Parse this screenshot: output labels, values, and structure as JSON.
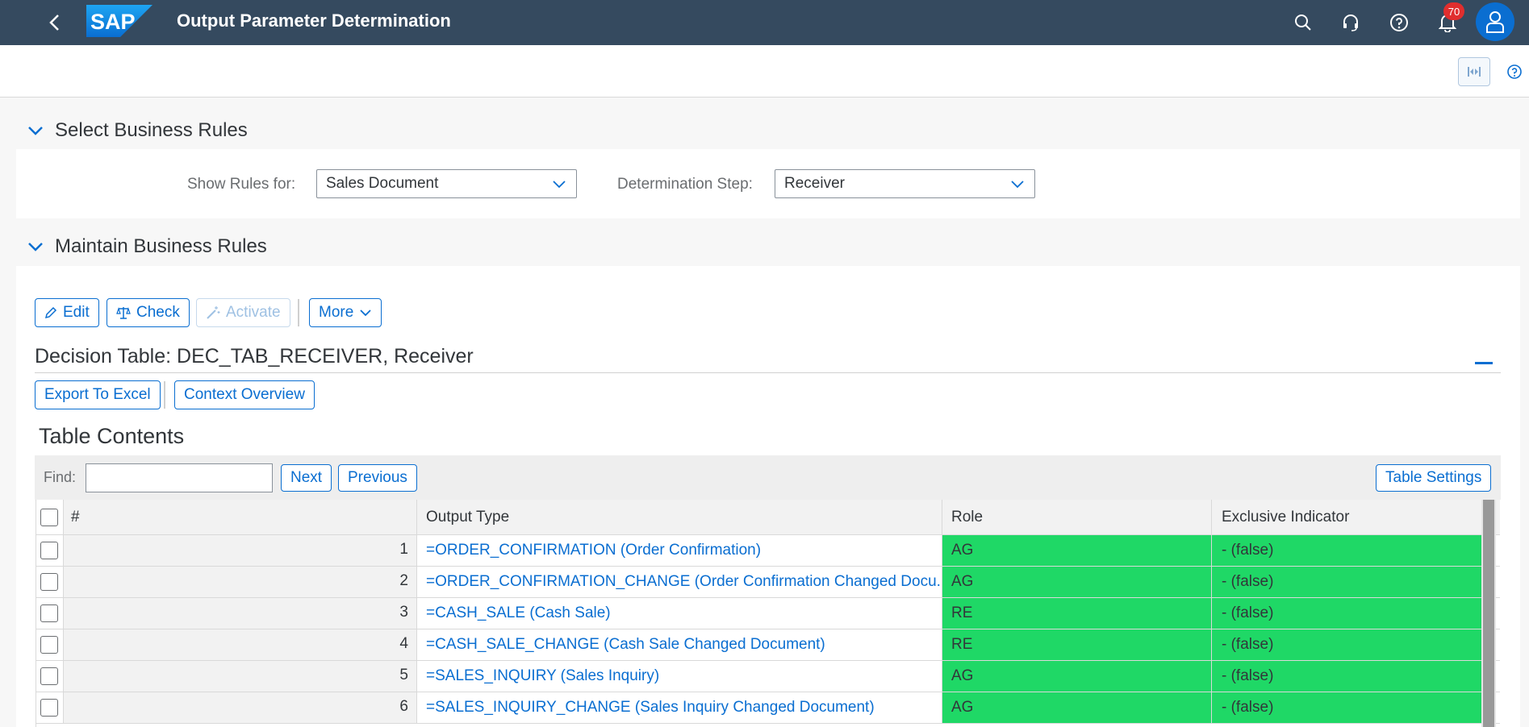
{
  "shell": {
    "title": "Output Parameter Determination",
    "logo_text": "SAP",
    "notification_count": "70"
  },
  "panel_select": {
    "title": "Select Business Rules",
    "show_rules_label": "Show Rules for:",
    "show_rules_value": "Sales Document",
    "determination_step_label": "Determination Step:",
    "determination_step_value": "Receiver"
  },
  "panel_maintain": {
    "title": "Maintain Business Rules",
    "toolbar": {
      "edit": "Edit",
      "check": "Check",
      "activate": "Activate",
      "more": "More"
    },
    "decision_table_title": "Decision Table: DEC_TAB_RECEIVER, Receiver",
    "export_excel": "Export To Excel",
    "context_overview": "Context Overview",
    "table_contents_title": "Table Contents",
    "find_label": "Find:",
    "find_value": "",
    "next": "Next",
    "previous": "Previous",
    "table_settings": "Table Settings"
  },
  "table": {
    "columns": [
      "#",
      "Output Type",
      "Role",
      "Exclusive Indicator"
    ],
    "rows": [
      {
        "num": "1",
        "output": "=ORDER_CONFIRMATION (Order Confirmation)",
        "role": "AG",
        "exclusive": "- (false)"
      },
      {
        "num": "2",
        "output": "=ORDER_CONFIRMATION_CHANGE (Order Confirmation Changed Docu...",
        "role": "AG",
        "exclusive": "- (false)"
      },
      {
        "num": "3",
        "output": "=CASH_SALE (Cash Sale)",
        "role": "RE",
        "exclusive": "- (false)"
      },
      {
        "num": "4",
        "output": "=CASH_SALE_CHANGE (Cash Sale Changed Document)",
        "role": "RE",
        "exclusive": "- (false)"
      },
      {
        "num": "5",
        "output": "=SALES_INQUIRY (Sales Inquiry)",
        "role": "AG",
        "exclusive": "- (false)"
      },
      {
        "num": "6",
        "output": "=SALES_INQUIRY_CHANGE (Sales Inquiry Changed Document)",
        "role": "AG",
        "exclusive": "- (false)"
      }
    ]
  },
  "colors": {
    "shell_bg": "#354a5f",
    "accent": "#0a6ed1",
    "cell_green": "#1fd866",
    "badge_red": "#e02e2e"
  }
}
